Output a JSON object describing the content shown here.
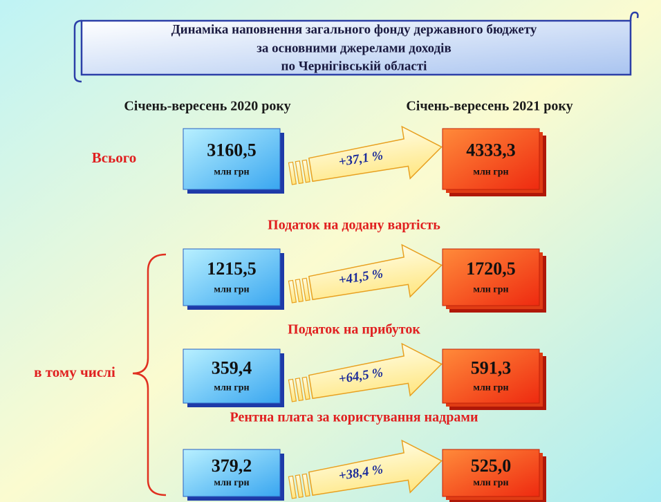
{
  "title": [
    "Динаміка наповнення загального фонду державного бюджету",
    "за основними джерелами доходів",
    "по Чернігівській області"
  ],
  "periods": [
    "Січень-вересень 2020 року",
    "Січень-вересень 2021 року"
  ],
  "unit": "млн грн",
  "subtotal_label": "в тому числі",
  "rows": [
    {
      "label": "Всього",
      "before": "3160,5",
      "change": "+37,1 %",
      "after": "4333,3"
    },
    {
      "label": "Податок на додану вартість",
      "before": "1215,5",
      "change": "+41,5 %",
      "after": "1720,5"
    },
    {
      "label": "Податок на прибуток",
      "before": "359,4",
      "change": "+64,5 %",
      "after": "591,3"
    },
    {
      "label": "Рентна плата за користування надрами",
      "before": "379,2",
      "change": "+38,4 %",
      "after": "525,0"
    }
  ]
}
